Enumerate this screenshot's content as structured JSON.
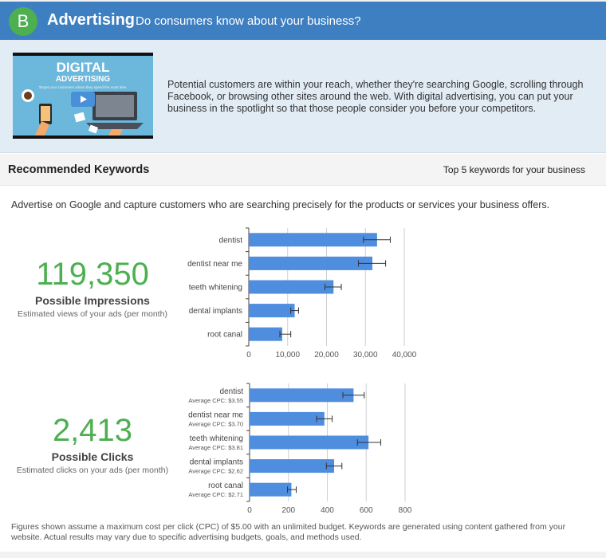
{
  "section": {
    "badge": "B",
    "title": "Advertising",
    "question": "Do consumers know about your business?"
  },
  "intro": {
    "thumbnail_title": "DIGITAL",
    "thumbnail_subtitle": "ADVERTISING",
    "thumbnail_caption": "Target your customers where they spend the most time.",
    "text": "Potential customers are within your reach, whether they're searching Google, scrolling through Facebook, or browsing other sites around the web. With digital advertising, you can put your business in the spotlight so that those people consider you before your competitors."
  },
  "keywords": {
    "title": "Recommended Keywords",
    "subtitle": "Top 5 keywords for your business",
    "description": "Advertise on Google and capture customers who are searching precisely for the products or services your business offers."
  },
  "impressions": {
    "value": "119,350",
    "label": "Possible Impressions",
    "note": "Estimated views of your ads (per month)"
  },
  "clicks": {
    "value": "2,413",
    "label": "Possible Clicks",
    "note": "Estimated clicks on your ads (per month)"
  },
  "chart_data": [
    {
      "type": "bar",
      "orientation": "horizontal",
      "categories": [
        "dentist",
        "dentist near me",
        "teeth whitening",
        "dental implants",
        "root canal"
      ],
      "values": [
        33000,
        31800,
        21800,
        11800,
        8600
      ],
      "error_low": [
        29500,
        28200,
        19600,
        10800,
        8000
      ],
      "error_high": [
        36400,
        35200,
        23800,
        12800,
        10800
      ],
      "xlim": [
        0,
        40000
      ],
      "xticks": [
        "0",
        "10,000",
        "20,000",
        "30,000",
        "40,000"
      ],
      "grid": true,
      "bar_color": "#4f8ddf"
    },
    {
      "type": "bar",
      "orientation": "horizontal",
      "categories": [
        "dentist",
        "dentist near me",
        "teeth whitening",
        "dental implants",
        "root canal"
      ],
      "sublabels": [
        "Average CPC: $3.55",
        "Average CPC: $3.70",
        "Average CPC: $3.81",
        "Average CPC: $2.62",
        "Average CPC: $2.71"
      ],
      "values": [
        535,
        385,
        612,
        435,
        215
      ],
      "error_low": [
        480,
        345,
        555,
        395,
        195
      ],
      "error_high": [
        590,
        425,
        675,
        475,
        240
      ],
      "xlim": [
        0,
        800
      ],
      "xticks": [
        "0",
        "200",
        "400",
        "600",
        "800"
      ],
      "grid": true,
      "bar_color": "#4f8ddf"
    }
  ],
  "footnote": "Figures shown assume a maximum cost per click (CPC) of $5.00 with an unlimited budget. Keywords are generated using content gathered from your website. Actual results may vary due to specific advertising budgets, goals, and methods used."
}
